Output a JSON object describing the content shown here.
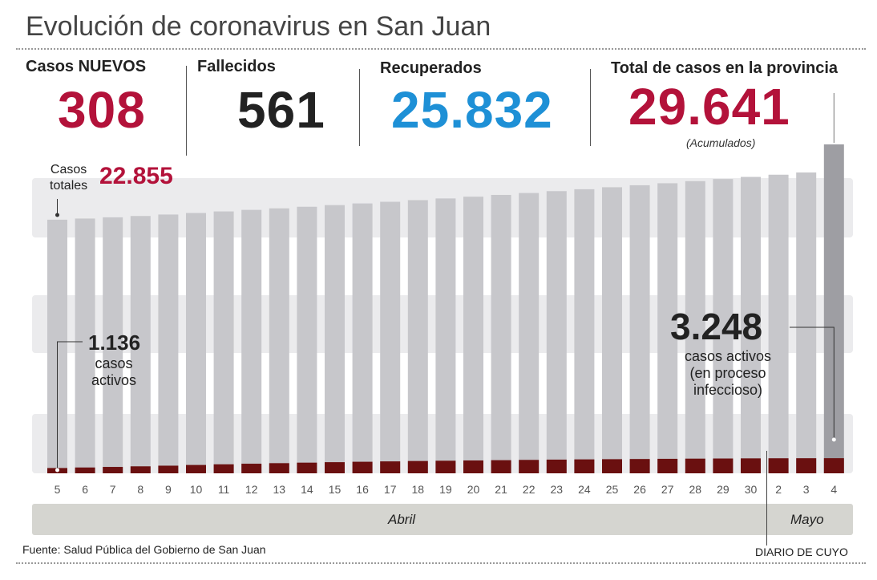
{
  "title": "Evolución de coronavirus en San Juan",
  "stats": {
    "new_cases": {
      "label": "Casos NUEVOS",
      "value": "308",
      "color": "#b3123a"
    },
    "deaths": {
      "label": "Fallecidos",
      "value": "561",
      "color": "#222222"
    },
    "recovered": {
      "label": "Recuperados",
      "value": "25.832",
      "color": "#1e90d6"
    },
    "total": {
      "label": "Total de casos en la provincia",
      "value": "29.641",
      "color": "#b3123a",
      "note": "(Acumulados)"
    }
  },
  "start_callout": {
    "label_line1": "Casos",
    "label_line2": "totales",
    "value": "22.855"
  },
  "active_start": {
    "value": "1.136",
    "line1": "casos",
    "line2": "activos"
  },
  "active_end": {
    "value": "3.248",
    "line1": "casos activos",
    "line2": "(en proceso",
    "line3": "infeccioso)"
  },
  "months": {
    "april": "Abril",
    "may": "Mayo"
  },
  "footer": {
    "source": "Fuente: Salud Pública del Gobierno de San Juan",
    "credit": "DIARIO DE CUYO"
  },
  "chart_data": {
    "type": "bar",
    "categories": [
      "5",
      "6",
      "7",
      "8",
      "9",
      "10",
      "11",
      "12",
      "13",
      "14",
      "15",
      "16",
      "17",
      "18",
      "19",
      "20",
      "21",
      "22",
      "23",
      "24",
      "25",
      "26",
      "27",
      "28",
      "29",
      "30",
      "2",
      "3",
      "4"
    ],
    "series": [
      {
        "values": [
          22855,
          22960,
          23070,
          23190,
          23320,
          23460,
          23600,
          23740,
          23880,
          24020,
          24170,
          24320,
          24470,
          24620,
          24770,
          24930,
          25090,
          25260,
          25430,
          25600,
          25780,
          25960,
          26140,
          26330,
          26520,
          26710,
          26910,
          27110,
          29641
        ]
      },
      {
        "values": [
          1136,
          1250,
          1370,
          1500,
          1640,
          1790,
          1930,
          2060,
          2180,
          2290,
          2390,
          2480,
          2560,
          2640,
          2700,
          2760,
          2820,
          2880,
          2940,
          2990,
          3030,
          3070,
          3110,
          3150,
          3180,
          3210,
          3230,
          3240,
          3248
        ]
      }
    ],
    "colors": {
      "total": "#c7c7cb",
      "total_last": "#9e9ea3",
      "active": "#6a1010",
      "band": "#ebebed"
    },
    "ylim": [
      0,
      30000
    ]
  }
}
